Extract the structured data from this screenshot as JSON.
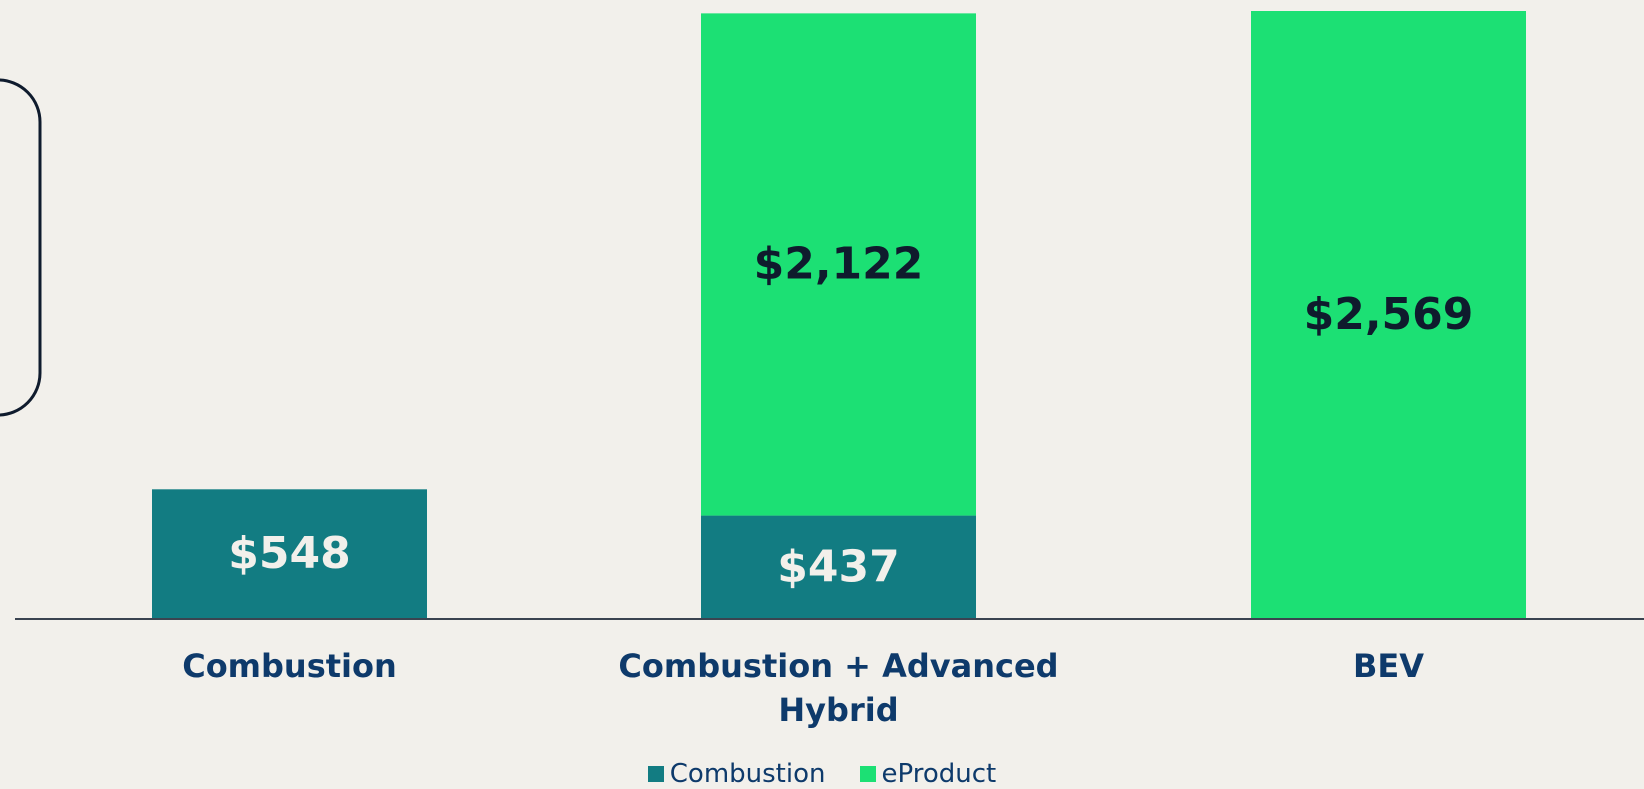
{
  "chart_data": {
    "type": "stacked_bar",
    "categories": [
      "Combustion",
      "Combustion + Advanced Hybrid",
      "BEV"
    ],
    "series": [
      {
        "name": "Combustion",
        "color": "#127c82",
        "values": [
          548,
          437,
          null
        ],
        "value_labels": [
          "$548",
          "$437",
          null
        ]
      },
      {
        "name": "eProduct",
        "color": "#1ce074",
        "values": [
          null,
          2122,
          2569
        ],
        "value_labels": [
          null,
          "$2,122",
          "$2,569"
        ]
      }
    ],
    "legend": "bottom"
  }
}
